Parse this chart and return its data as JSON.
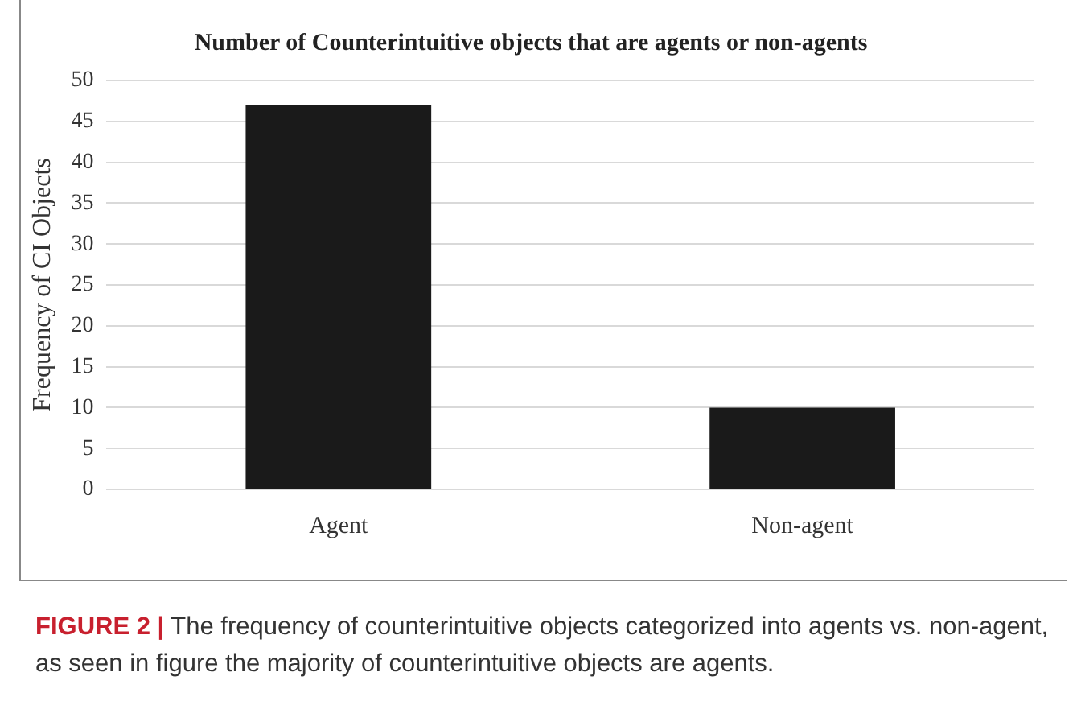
{
  "chart_data": {
    "type": "bar",
    "title": "Number of Counterintuitive objects that are agents or non-agents",
    "ylabel": "Frequency of CI Objects",
    "categories": [
      "Agent",
      "Non-agent"
    ],
    "values": [
      47,
      10
    ],
    "color": "#1a1a1a",
    "ylim": [
      0,
      50
    ],
    "yticks": [
      0,
      5,
      10,
      15,
      20,
      25,
      30,
      35,
      40,
      45,
      50
    ],
    "grid": "y",
    "annotations": [
      "FIGURE 2 | The frequency of counterintuitive objects categorized into agents vs. non-agent, as seen in figure the majority of counterintuitive objects are agents."
    ]
  }
}
